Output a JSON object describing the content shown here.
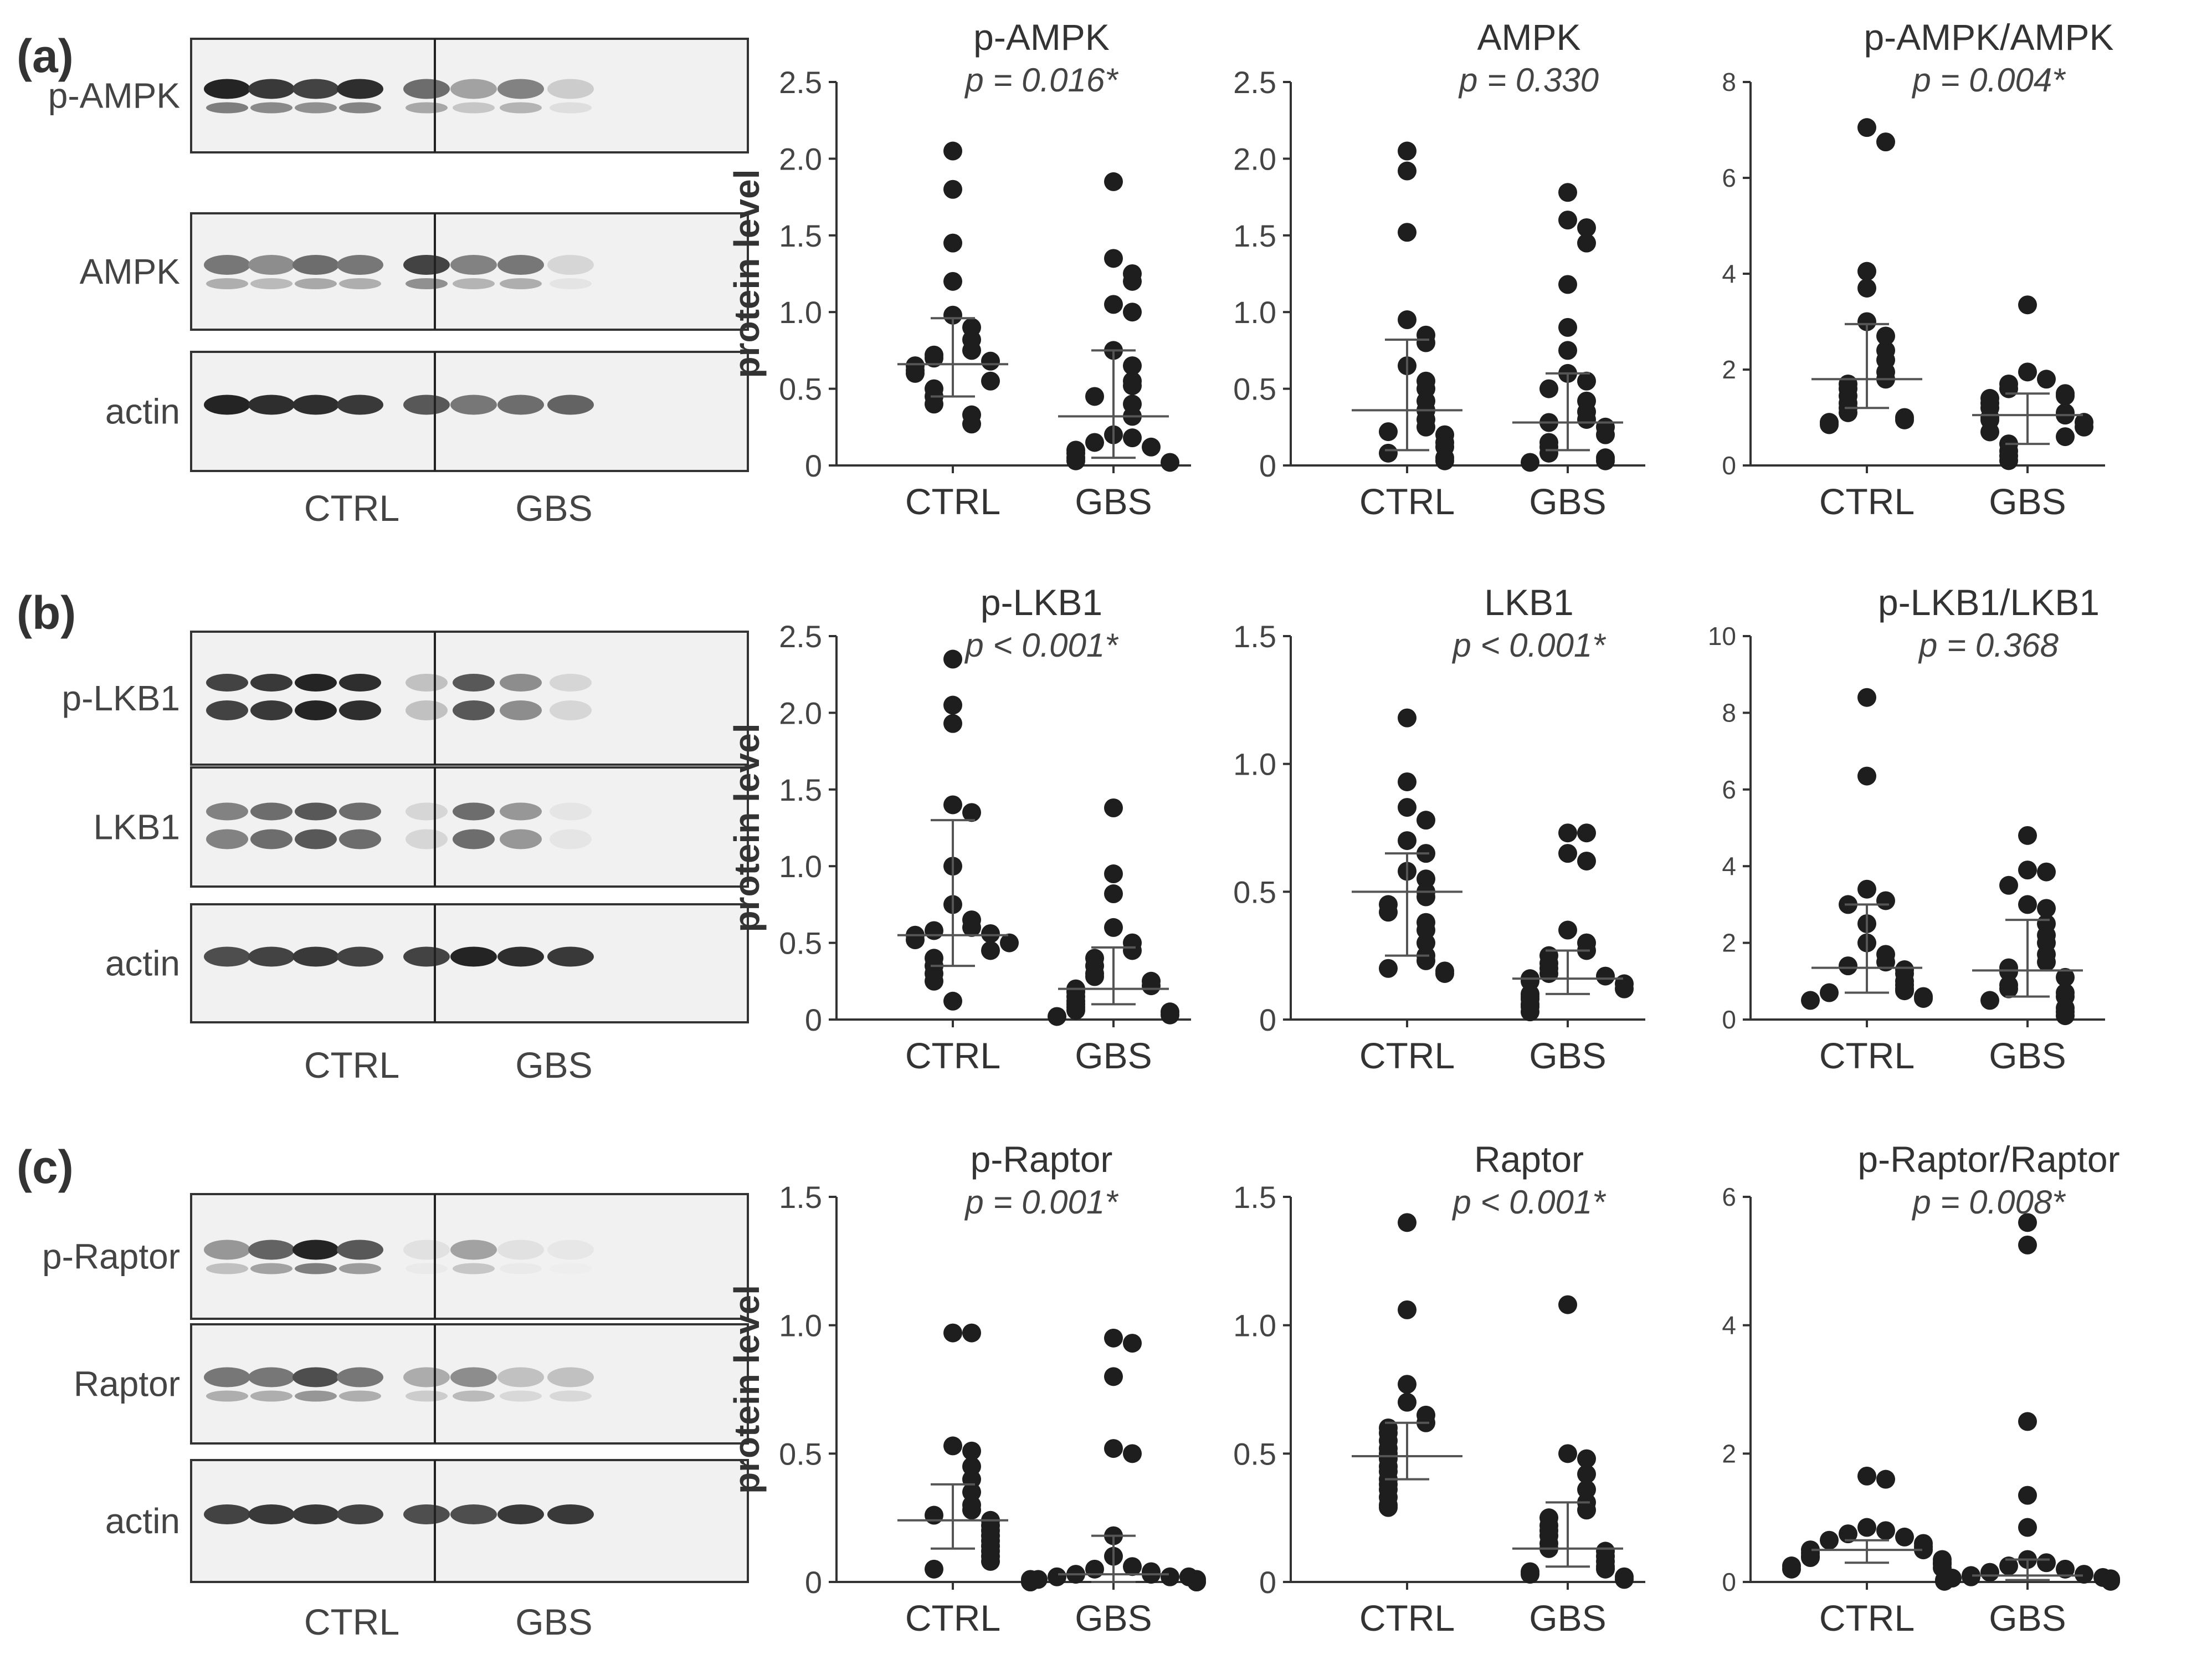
{
  "panels": [
    {
      "id": "a",
      "label": "(a)",
      "blots": [
        {
          "name": "p-AMPK",
          "intensity": [
            0.95,
            0.85,
            0.8,
            0.9,
            0.6,
            0.35,
            0.5,
            0.15
          ]
        },
        {
          "name": "AMPK",
          "intensity": [
            0.55,
            0.45,
            0.6,
            0.55,
            0.8,
            0.5,
            0.55,
            0.1
          ]
        },
        {
          "name": "actin",
          "intensity": [
            0.95,
            0.9,
            0.9,
            0.85,
            0.7,
            0.55,
            0.6,
            0.65
          ]
        }
      ],
      "groups": [
        "CTRL",
        "GBS"
      ]
    },
    {
      "id": "b",
      "label": "(b)",
      "blots": [
        {
          "name": "p-LKB1",
          "intensity": [
            0.8,
            0.85,
            0.95,
            0.9,
            0.2,
            0.7,
            0.45,
            0.1
          ]
        },
        {
          "name": "LKB1",
          "intensity": [
            0.5,
            0.6,
            0.7,
            0.6,
            0.1,
            0.6,
            0.4,
            0.03
          ]
        },
        {
          "name": "actin",
          "intensity": [
            0.75,
            0.8,
            0.85,
            0.8,
            0.8,
            0.95,
            0.9,
            0.85
          ]
        }
      ],
      "groups": [
        "CTRL",
        "GBS"
      ]
    },
    {
      "id": "c",
      "label": "(c)",
      "blots": [
        {
          "name": "p-Raptor",
          "intensity": [
            0.4,
            0.65,
            0.95,
            0.7,
            0.05,
            0.35,
            0.05,
            0.02
          ]
        },
        {
          "name": "Raptor",
          "intensity": [
            0.55,
            0.55,
            0.75,
            0.55,
            0.3,
            0.45,
            0.2,
            0.2
          ]
        },
        {
          "name": "actin",
          "intensity": [
            0.8,
            0.85,
            0.85,
            0.8,
            0.75,
            0.75,
            0.85,
            0.85
          ]
        }
      ],
      "groups": [
        "CTRL",
        "GBS"
      ]
    }
  ],
  "chart_data": [
    {
      "type": "scatter",
      "panel": "a",
      "title": "p-AMPK",
      "pvalue": "p = 0.016*",
      "ylabel": "protein level",
      "ylim": [
        0,
        2.5
      ],
      "yticks": [
        0,
        0.5,
        1.0,
        1.5,
        2.0,
        2.5
      ],
      "ytick_labels": [
        "0",
        "0.5",
        "1.0",
        "1.5",
        "2.0",
        "2.5"
      ],
      "categories": [
        "CTRL",
        "GBS"
      ],
      "series": [
        {
          "name": "CTRL",
          "median": 0.66,
          "q1": 0.45,
          "q3": 0.96,
          "values": [
            2.05,
            1.8,
            1.45,
            1.2,
            0.98,
            0.9,
            0.82,
            0.75,
            0.72,
            0.7,
            0.68,
            0.65,
            0.62,
            0.6,
            0.55,
            0.5,
            0.45,
            0.4,
            0.33,
            0.27
          ]
        },
        {
          "name": "GBS",
          "median": 0.32,
          "q1": 0.05,
          "q3": 0.75,
          "values": [
            1.85,
            1.35,
            1.25,
            1.2,
            1.05,
            1.0,
            0.75,
            0.65,
            0.55,
            0.52,
            0.45,
            0.4,
            0.32,
            0.2,
            0.18,
            0.15,
            0.12,
            0.1,
            0.08,
            0.05,
            0.03,
            0.02
          ]
        }
      ]
    },
    {
      "type": "scatter",
      "panel": "a",
      "title": "AMPK",
      "pvalue": "p = 0.330",
      "ylabel": "",
      "ylim": [
        0,
        2.5
      ],
      "yticks": [
        0,
        0.5,
        1.0,
        1.5,
        2.0,
        2.5
      ],
      "ytick_labels": [
        "0",
        "0.5",
        "1.0",
        "1.5",
        "2.0",
        "2.5"
      ],
      "categories": [
        "CTRL",
        "GBS"
      ],
      "series": [
        {
          "name": "CTRL",
          "median": 0.36,
          "q1": 0.1,
          "q3": 0.82,
          "values": [
            2.05,
            1.92,
            1.52,
            0.95,
            0.85,
            0.8,
            0.65,
            0.55,
            0.5,
            0.42,
            0.36,
            0.3,
            0.25,
            0.22,
            0.2,
            0.15,
            0.12,
            0.08,
            0.05,
            0.03
          ]
        },
        {
          "name": "GBS",
          "median": 0.28,
          "q1": 0.1,
          "q3": 0.6,
          "values": [
            1.78,
            1.6,
            1.55,
            1.45,
            1.18,
            0.9,
            0.75,
            0.6,
            0.55,
            0.5,
            0.42,
            0.35,
            0.3,
            0.28,
            0.25,
            0.2,
            0.15,
            0.12,
            0.08,
            0.05,
            0.03,
            0.02
          ]
        }
      ]
    },
    {
      "type": "scatter",
      "panel": "a",
      "title": "p-AMPK/AMPK",
      "pvalue": "p = 0.004*",
      "ylabel": "",
      "ylim": [
        0,
        8
      ],
      "yticks": [
        0,
        2,
        4,
        6,
        8
      ],
      "ytick_labels": [
        "0",
        "2",
        "4",
        "6",
        "8"
      ],
      "categories": [
        "CTRL",
        "GBS"
      ],
      "series": [
        {
          "name": "CTRL",
          "median": 1.8,
          "q1": 1.2,
          "q3": 2.95,
          "values": [
            7.05,
            6.75,
            4.05,
            3.7,
            3.0,
            2.7,
            2.4,
            2.2,
            1.95,
            1.8,
            1.7,
            1.6,
            1.45,
            1.3,
            1.2,
            1.1,
            1.0,
            0.95,
            0.9,
            0.85
          ]
        },
        {
          "name": "GBS",
          "median": 1.05,
          "q1": 0.45,
          "q3": 1.5,
          "values": [
            3.35,
            1.95,
            1.8,
            1.7,
            1.6,
            1.5,
            1.45,
            1.4,
            1.3,
            1.2,
            1.1,
            1.05,
            1.0,
            0.95,
            0.9,
            0.8,
            0.7,
            0.6,
            0.45,
            0.3,
            0.2,
            0.1
          ]
        }
      ]
    },
    {
      "type": "scatter",
      "panel": "b",
      "title": "p-LKB1",
      "pvalue": "p < 0.001*",
      "ylabel": "protein level",
      "ylim": [
        0,
        2.5
      ],
      "yticks": [
        0,
        0.5,
        1.0,
        1.5,
        2.0,
        2.5
      ],
      "ytick_labels": [
        "0",
        "0.5",
        "1.0",
        "1.5",
        "2.0",
        "2.5"
      ],
      "categories": [
        "CTRL",
        "GBS"
      ],
      "series": [
        {
          "name": "CTRL",
          "median": 0.55,
          "q1": 0.35,
          "q3": 1.3,
          "values": [
            2.35,
            2.05,
            1.93,
            1.4,
            1.35,
            1.0,
            0.75,
            0.65,
            0.6,
            0.58,
            0.56,
            0.55,
            0.52,
            0.5,
            0.45,
            0.4,
            0.35,
            0.3,
            0.25,
            0.12
          ]
        },
        {
          "name": "GBS",
          "median": 0.2,
          "q1": 0.1,
          "q3": 0.47,
          "values": [
            1.38,
            0.95,
            0.82,
            0.6,
            0.5,
            0.45,
            0.4,
            0.35,
            0.3,
            0.28,
            0.25,
            0.22,
            0.2,
            0.18,
            0.15,
            0.12,
            0.1,
            0.08,
            0.06,
            0.05,
            0.03,
            0.02
          ]
        }
      ]
    },
    {
      "type": "scatter",
      "panel": "b",
      "title": "LKB1",
      "pvalue": "p < 0.001*",
      "ylabel": "",
      "ylim": [
        0,
        1.5
      ],
      "yticks": [
        0,
        0.5,
        1.0,
        1.5
      ],
      "ytick_labels": [
        "0",
        "0.5",
        "1.0",
        "1.5"
      ],
      "categories": [
        "CTRL",
        "GBS"
      ],
      "series": [
        {
          "name": "CTRL",
          "median": 0.5,
          "q1": 0.25,
          "q3": 0.65,
          "values": [
            1.18,
            0.93,
            0.83,
            0.78,
            0.7,
            0.65,
            0.58,
            0.55,
            0.5,
            0.48,
            0.45,
            0.42,
            0.38,
            0.35,
            0.3,
            0.25,
            0.23,
            0.2,
            0.19,
            0.18
          ]
        },
        {
          "name": "GBS",
          "median": 0.16,
          "q1": 0.1,
          "q3": 0.27,
          "values": [
            0.73,
            0.73,
            0.65,
            0.62,
            0.35,
            0.3,
            0.27,
            0.25,
            0.22,
            0.2,
            0.18,
            0.17,
            0.16,
            0.15,
            0.14,
            0.12,
            0.1,
            0.09,
            0.08,
            0.06,
            0.05,
            0.03
          ]
        }
      ]
    },
    {
      "type": "scatter",
      "panel": "b",
      "title": "p-LKB1/LKB1",
      "pvalue": "p = 0.368",
      "ylabel": "",
      "ylim": [
        0,
        10
      ],
      "yticks": [
        0,
        2,
        4,
        6,
        8,
        10
      ],
      "ytick_labels": [
        "0",
        "2",
        "4",
        "6",
        "8",
        "10"
      ],
      "categories": [
        "CTRL",
        "GBS"
      ],
      "series": [
        {
          "name": "CTRL",
          "median": 1.35,
          "q1": 0.7,
          "q3": 3.0,
          "values": [
            8.4,
            6.35,
            3.4,
            3.1,
            3.0,
            2.5,
            2.0,
            1.7,
            1.5,
            1.4,
            1.3,
            1.2,
            1.0,
            0.9,
            0.8,
            0.75,
            0.7,
            0.6,
            0.55,
            0.5
          ]
        },
        {
          "name": "GBS",
          "median": 1.28,
          "q1": 0.6,
          "q3": 2.6,
          "values": [
            4.8,
            3.9,
            3.85,
            3.5,
            3.0,
            2.9,
            2.5,
            2.2,
            2.0,
            1.7,
            1.5,
            1.35,
            1.25,
            1.1,
            0.9,
            0.8,
            0.7,
            0.6,
            0.5,
            0.3,
            0.2,
            0.1
          ]
        }
      ]
    },
    {
      "type": "scatter",
      "panel": "c",
      "title": "p-Raptor",
      "pvalue": "p = 0.001*",
      "ylabel": "protein level",
      "ylim": [
        0,
        1.5
      ],
      "yticks": [
        0,
        0.5,
        1.0,
        1.5
      ],
      "ytick_labels": [
        "0",
        "0.5",
        "1.0",
        "1.5"
      ],
      "categories": [
        "CTRL",
        "GBS"
      ],
      "series": [
        {
          "name": "CTRL",
          "median": 0.24,
          "q1": 0.13,
          "q3": 0.38,
          "values": [
            0.97,
            0.97,
            0.53,
            0.51,
            0.45,
            0.4,
            0.35,
            0.3,
            0.28,
            0.26,
            0.24,
            0.22,
            0.2,
            0.18,
            0.16,
            0.14,
            0.12,
            0.1,
            0.08,
            0.05
          ]
        },
        {
          "name": "GBS",
          "median": 0.03,
          "q1": 0.0,
          "q3": 0.18,
          "values": [
            0.95,
            0.93,
            0.8,
            0.52,
            0.5,
            0.18,
            0.1,
            0.06,
            0.05,
            0.04,
            0.03,
            0.03,
            0.02,
            0.02,
            0.02,
            0.01,
            0.01,
            0.01,
            0.0,
            0.0,
            0.0,
            0.0
          ]
        }
      ]
    },
    {
      "type": "scatter",
      "panel": "c",
      "title": "Raptor",
      "pvalue": "p < 0.001*",
      "ylabel": "",
      "ylim": [
        0,
        1.5
      ],
      "yticks": [
        0,
        0.5,
        1.0,
        1.5
      ],
      "ytick_labels": [
        "0",
        "0.5",
        "1.0",
        "1.5"
      ],
      "categories": [
        "CTRL",
        "GBS"
      ],
      "series": [
        {
          "name": "CTRL",
          "median": 0.49,
          "q1": 0.4,
          "q3": 0.62,
          "values": [
            1.4,
            1.06,
            0.77,
            0.7,
            0.65,
            0.62,
            0.6,
            0.58,
            0.55,
            0.52,
            0.5,
            0.48,
            0.45,
            0.43,
            0.4,
            0.38,
            0.36,
            0.33,
            0.3,
            0.29
          ]
        },
        {
          "name": "GBS",
          "median": 0.13,
          "q1": 0.06,
          "q3": 0.31,
          "values": [
            1.08,
            0.5,
            0.48,
            0.42,
            0.36,
            0.31,
            0.28,
            0.25,
            0.22,
            0.2,
            0.18,
            0.15,
            0.13,
            0.12,
            0.1,
            0.08,
            0.06,
            0.05,
            0.04,
            0.03,
            0.02,
            0.01
          ]
        }
      ]
    },
    {
      "type": "scatter",
      "panel": "c",
      "title": "p-Raptor/Raptor",
      "pvalue": "p = 0.008*",
      "ylabel": "",
      "ylim": [
        0,
        6
      ],
      "yticks": [
        0,
        2,
        4,
        6
      ],
      "ytick_labels": [
        "0",
        "2",
        "4",
        "6"
      ],
      "categories": [
        "CTRL",
        "GBS"
      ],
      "series": [
        {
          "name": "CTRL",
          "median": 0.5,
          "q1": 0.3,
          "q3": 0.65,
          "values": [
            1.65,
            1.6,
            0.85,
            0.8,
            0.75,
            0.7,
            0.65,
            0.6,
            0.55,
            0.5,
            0.5,
            0.45,
            0.4,
            0.38,
            0.35,
            0.3,
            0.28,
            0.25,
            0.22,
            0.2
          ]
        },
        {
          "name": "GBS",
          "median": 0.1,
          "q1": 0.03,
          "q3": 0.35,
          "values": [
            5.6,
            5.25,
            2.5,
            1.35,
            0.85,
            0.35,
            0.3,
            0.25,
            0.2,
            0.15,
            0.12,
            0.1,
            0.08,
            0.07,
            0.06,
            0.05,
            0.04,
            0.03,
            0.02,
            0.02,
            0.01,
            0.01
          ]
        }
      ]
    }
  ]
}
